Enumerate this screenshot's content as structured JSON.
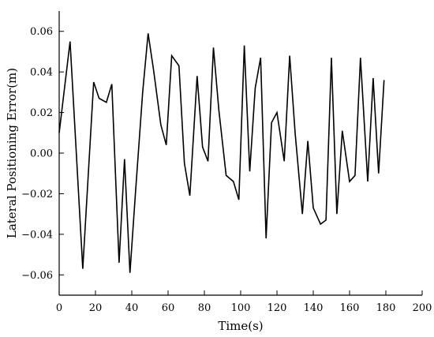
{
  "chart_data": {
    "type": "line",
    "title": "",
    "xlabel": "Time(s)",
    "ylabel": "Lateral Positioning Error(m)",
    "xlim": [
      0,
      200
    ],
    "ylim": [
      -0.07,
      0.07
    ],
    "x_ticks": [
      0,
      20,
      40,
      60,
      80,
      100,
      120,
      140,
      160,
      180,
      200
    ],
    "x_tick_labels": [
      "0",
      "20",
      "40",
      "60",
      "80",
      "100",
      "120",
      "140",
      "160",
      "180",
      "200"
    ],
    "y_ticks": [
      -0.06,
      -0.04,
      -0.02,
      0.0,
      0.02,
      0.04,
      0.06
    ],
    "y_tick_labels": [
      "−0.06",
      "−0.04",
      "−0.02",
      "0.00",
      "0.02",
      "0.04",
      "0.06"
    ],
    "grid": false,
    "line_color": "#000000",
    "series": [
      {
        "x": [
          0,
          6,
          13,
          19,
          22,
          26,
          29,
          33,
          36,
          39,
          42,
          46,
          49,
          52,
          56,
          59,
          62,
          66,
          69,
          72,
          76,
          79,
          82,
          85,
          88,
          92,
          96,
          99,
          102,
          105,
          108,
          111,
          114,
          117,
          120,
          124,
          127,
          130,
          134,
          137,
          140,
          144,
          147,
          150,
          153,
          156,
          160,
          163,
          166,
          170,
          173,
          176,
          179
        ],
        "y": [
          0.01,
          0.055,
          -0.057,
          0.035,
          0.027,
          0.025,
          0.034,
          -0.054,
          -0.003,
          -0.059,
          -0.02,
          0.03,
          0.059,
          0.041,
          0.014,
          0.004,
          0.048,
          0.043,
          -0.005,
          -0.021,
          0.038,
          0.003,
          -0.004,
          0.052,
          0.021,
          -0.011,
          -0.014,
          -0.023,
          0.053,
          -0.009,
          0.032,
          0.047,
          -0.042,
          0.015,
          0.02,
          -0.004,
          0.048,
          0.01,
          -0.03,
          0.006,
          -0.027,
          -0.035,
          -0.033,
          0.047,
          -0.03,
          0.011,
          -0.014,
          -0.011,
          0.047,
          -0.014,
          0.037,
          -0.01,
          0.036
        ]
      }
    ]
  }
}
